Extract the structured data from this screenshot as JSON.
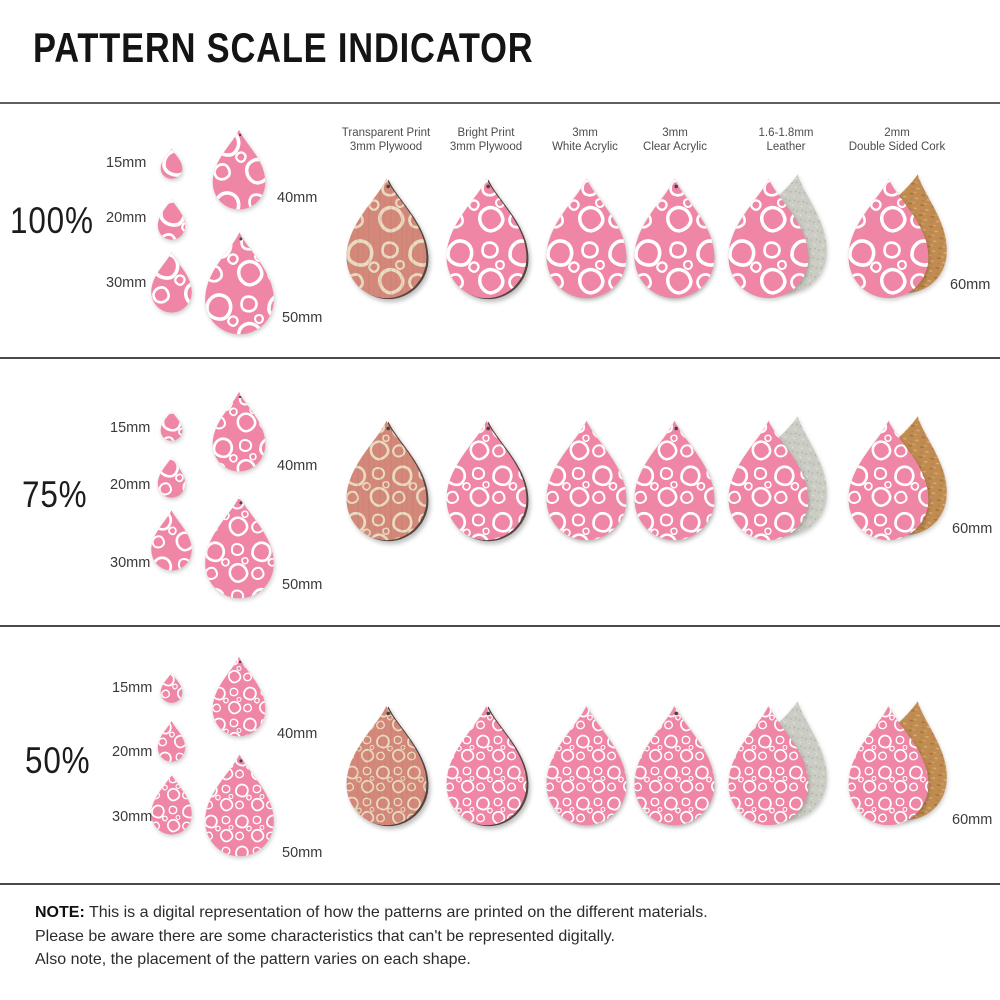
{
  "title": "PATTERN SCALE INDICATOR",
  "columns": [
    {
      "line1": "Transparent Print",
      "line2": "3mm Plywood"
    },
    {
      "line1": "Bright Print",
      "line2": "3mm Plywood"
    },
    {
      "line1": "3mm",
      "line2": "White Acrylic"
    },
    {
      "line1": "3mm",
      "line2": "Clear Acrylic"
    },
    {
      "line1": "1.6-1.8mm",
      "line2": "Leather"
    },
    {
      "line1": "2mm",
      "line2": "Double Sided Cork"
    }
  ],
  "rows": [
    {
      "scale": "100%"
    },
    {
      "scale": "75%"
    },
    {
      "scale": "50%"
    }
  ],
  "sizes": {
    "s15": "15mm",
    "s20": "20mm",
    "s30": "30mm",
    "s40": "40mm",
    "s50": "50mm",
    "s60": "60mm"
  },
  "note": {
    "label": "NOTE:",
    "line1": "This is a digital representation of how the patterns are printed on the different materials.",
    "line2": "Please be aware there are some characteristics that can't be represented digitally.",
    "line3": "Also note, the placement of the pattern varies on each shape."
  },
  "colors": {
    "pattern_pink": "#ef86a5",
    "pattern_print_white": "#ffffff",
    "transparent_print_base": "#d4887a",
    "transparent_print_pick": "#e9dcc2",
    "leather_back_gray": "#cbccc3",
    "cork_tan": "#c08c51",
    "plywood_edge": "#55453e",
    "divider_gray": "#4a4a4a"
  }
}
